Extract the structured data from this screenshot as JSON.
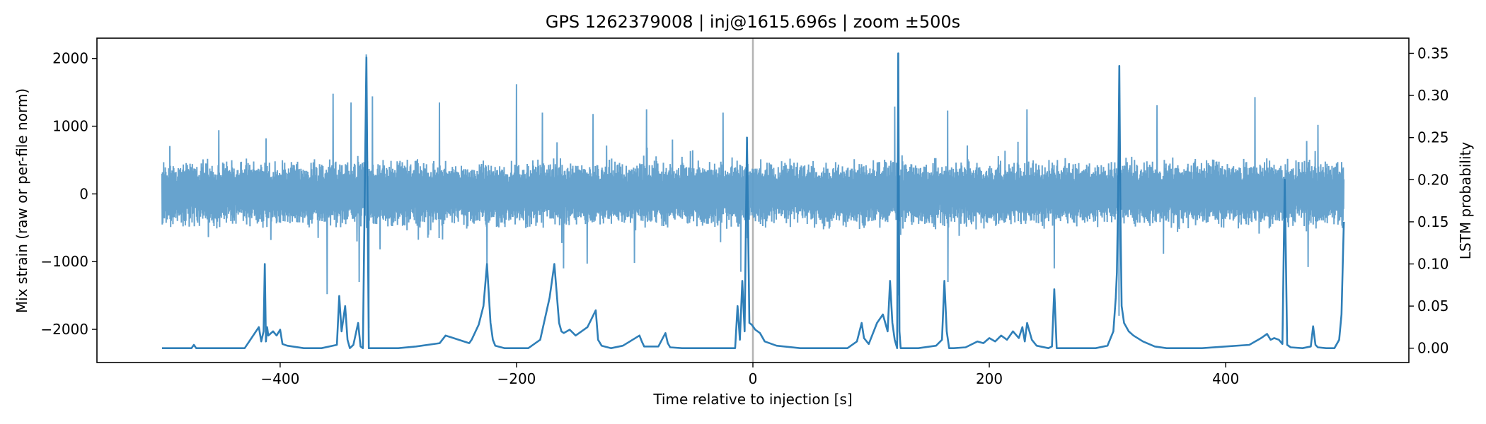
{
  "chart_data": {
    "type": "line",
    "title": "GPS 1262379008 | inj@1615.696s | zoom ±500s",
    "xlabel": "Time relative to injection [s]",
    "ylabel_left": "Mix strain (raw or per-file norm)",
    "ylabel_right": "LSTM probability",
    "xlim": [
      -555,
      555
    ],
    "ylim_left": [
      -2490,
      2300
    ],
    "ylim_right": [
      -0.017,
      0.368
    ],
    "x_ticks": [
      -400,
      -200,
      0,
      200,
      400
    ],
    "x_tick_labels": [
      "−400",
      "−200",
      "0",
      "200",
      "400"
    ],
    "y_left_ticks": [
      2000,
      1000,
      0,
      -1000,
      -2000
    ],
    "y_left_tick_labels": [
      "2000",
      "1000",
      "0",
      "−1000",
      "−2000"
    ],
    "y_right_ticks": [
      0.35,
      0.3,
      0.25,
      0.2,
      0.15,
      0.1,
      0.05,
      0.0
    ],
    "y_right_tick_labels": [
      "0.35",
      "0.30",
      "0.25",
      "0.20",
      "0.15",
      "0.10",
      "0.05",
      "0.00"
    ],
    "grid": false,
    "injection_marker_x": 0,
    "colors": {
      "strain": "#5f9ecb",
      "probability": "#2f7fb8",
      "marker": "#b3b3b3"
    },
    "series": [
      {
        "axis": "left",
        "x_range": [
          -500,
          500
        ],
        "typical_band": [
          -450,
          450
        ],
        "peaks": [
          {
            "x": -452,
            "y": 940
          },
          {
            "x": -412,
            "y": 820
          },
          {
            "x": -355,
            "y": 1480
          },
          {
            "x": -340,
            "y": 1350
          },
          {
            "x": -322,
            "y": 1440
          },
          {
            "x": -327,
            "y": 2060
          },
          {
            "x": -265,
            "y": 1350
          },
          {
            "x": -200,
            "y": 1620
          },
          {
            "x": -178,
            "y": 1200
          },
          {
            "x": -135,
            "y": 1180
          },
          {
            "x": -90,
            "y": 1250
          },
          {
            "x": -25,
            "y": 1200
          },
          {
            "x": 120,
            "y": 1290
          },
          {
            "x": 123,
            "y": 2060
          },
          {
            "x": 165,
            "y": 1230
          },
          {
            "x": 232,
            "y": 1250
          },
          {
            "x": 310,
            "y": 1880
          },
          {
            "x": 342,
            "y": 1310
          },
          {
            "x": 425,
            "y": 1430
          },
          {
            "x": 478,
            "y": 1020
          }
        ],
        "troughs": [
          {
            "x": -360,
            "y": -1480
          },
          {
            "x": -333,
            "y": -1300
          },
          {
            "x": -325,
            "y": -1980
          },
          {
            "x": -225,
            "y": -1200
          },
          {
            "x": -160,
            "y": -1100
          },
          {
            "x": -140,
            "y": -1030
          },
          {
            "x": -100,
            "y": -1020
          },
          {
            "x": -10,
            "y": -1150
          },
          {
            "x": 123,
            "y": -1500
          },
          {
            "x": 165,
            "y": -1300
          },
          {
            "x": 255,
            "y": -1100
          },
          {
            "x": 310,
            "y": -1800
          },
          {
            "x": 470,
            "y": -1080
          }
        ]
      },
      {
        "axis": "right",
        "x": [
          -500,
          -475,
          -473,
          -471,
          -460,
          -430,
          -418,
          -416,
          -414,
          -413,
          -412,
          -411,
          -410,
          -406,
          -403,
          -400,
          -398,
          -394,
          -380,
          -365,
          -352,
          -350,
          -348,
          -345,
          -343,
          -341,
          -338,
          -334,
          -332,
          -330,
          -327,
          -325,
          -300,
          -285,
          -265,
          -260,
          -240,
          -238,
          -232,
          -228,
          -225,
          -222,
          -220,
          -218,
          -210,
          -200,
          -190,
          -180,
          -172,
          -168,
          -164,
          -162,
          -160,
          -155,
          -150,
          -140,
          -133,
          -131,
          -128,
          -120,
          -110,
          -96,
          -94,
          -92,
          -80,
          -74,
          -72,
          -70,
          -60,
          -30,
          -15,
          -13,
          -11,
          -9,
          -7,
          -5,
          -3,
          -1,
          2,
          6,
          10,
          20,
          40,
          60,
          80,
          88,
          92,
          94,
          98,
          105,
          110,
          114,
          116,
          118,
          120,
          122,
          123,
          124,
          125,
          127,
          140,
          155,
          160,
          162,
          164,
          166,
          170,
          180,
          190,
          195,
          200,
          205,
          210,
          215,
          220,
          225,
          228,
          230,
          232,
          234,
          236,
          240,
          250,
          253,
          255,
          257,
          260,
          290,
          300,
          305,
          307,
          308,
          309,
          310,
          311,
          312,
          314,
          318,
          322,
          330,
          340,
          350,
          380,
          400,
          420,
          430,
          435,
          438,
          441,
          445,
          448,
          450,
          452,
          455,
          465,
          472,
          474,
          476,
          478,
          485,
          492,
          496,
          498,
          500
        ],
        "values": [
          0.0,
          0.0,
          0.004,
          0.0,
          0.0,
          0.0,
          0.025,
          0.008,
          0.02,
          0.1,
          0.008,
          0.025,
          0.015,
          0.02,
          0.015,
          0.022,
          0.005,
          0.003,
          0.0,
          0.0,
          0.004,
          0.062,
          0.02,
          0.05,
          0.01,
          0.0,
          0.004,
          0.03,
          0.002,
          0.0,
          0.345,
          0.0,
          0.0,
          0.002,
          0.006,
          0.015,
          0.006,
          0.01,
          0.028,
          0.05,
          0.1,
          0.03,
          0.01,
          0.003,
          0.0,
          0.0,
          0.0,
          0.01,
          0.06,
          0.1,
          0.03,
          0.02,
          0.018,
          0.022,
          0.015,
          0.025,
          0.045,
          0.01,
          0.003,
          0.0,
          0.003,
          0.015,
          0.008,
          0.002,
          0.002,
          0.018,
          0.006,
          0.001,
          0.0,
          0.0,
          0.0,
          0.05,
          0.01,
          0.08,
          0.02,
          0.25,
          0.03,
          0.028,
          0.022,
          0.018,
          0.008,
          0.003,
          0.0,
          0.0,
          0.0,
          0.008,
          0.03,
          0.012,
          0.005,
          0.03,
          0.04,
          0.02,
          0.08,
          0.03,
          0.01,
          0.0,
          0.35,
          0.02,
          0.0,
          0.0,
          0.0,
          0.003,
          0.01,
          0.08,
          0.02,
          0.0,
          0.0,
          0.001,
          0.008,
          0.006,
          0.012,
          0.008,
          0.015,
          0.01,
          0.02,
          0.012,
          0.025,
          0.008,
          0.03,
          0.02,
          0.01,
          0.003,
          0.0,
          0.002,
          0.07,
          0.0,
          0.0,
          0.0,
          0.003,
          0.02,
          0.06,
          0.09,
          0.18,
          0.335,
          0.15,
          0.05,
          0.03,
          0.02,
          0.015,
          0.008,
          0.002,
          0.0,
          0.0,
          0.002,
          0.004,
          0.012,
          0.017,
          0.01,
          0.012,
          0.01,
          0.005,
          0.2,
          0.004,
          0.001,
          0.0,
          0.002,
          0.026,
          0.004,
          0.001,
          0.0,
          0.0,
          0.01,
          0.04,
          0.15
        ]
      }
    ]
  }
}
